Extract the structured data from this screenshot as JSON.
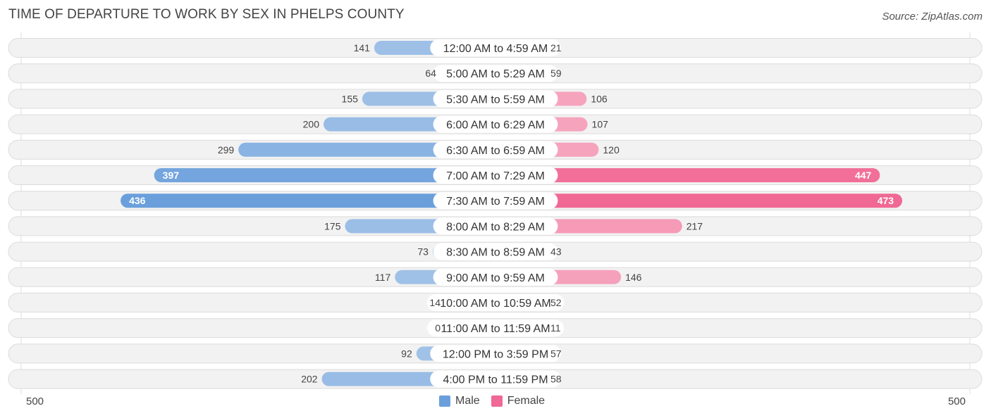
{
  "title": "TIME OF DEPARTURE TO WORK BY SEX IN PHELPS COUNTY",
  "source": "Source: ZipAtlas.com",
  "colors": {
    "male_light": "#a4c4e8",
    "male_strong": "#6a9fdc",
    "female_light": "#f6a7c0",
    "female_strong": "#f06894",
    "row_bg": "#f2f2f2",
    "row_border": "#dcdcdc"
  },
  "legend": {
    "male": "Male",
    "female": "Female"
  },
  "axis": {
    "left_label": "500",
    "right_label": "500"
  },
  "chart_data": {
    "type": "bar",
    "orientation": "horizontal-diverging",
    "title": "TIME OF DEPARTURE TO WORK BY SEX IN PHELPS COUNTY",
    "xlim": [
      -500,
      500
    ],
    "categories": [
      "12:00 AM to 4:59 AM",
      "5:00 AM to 5:29 AM",
      "5:30 AM to 5:59 AM",
      "6:00 AM to 6:29 AM",
      "6:30 AM to 6:59 AM",
      "7:00 AM to 7:29 AM",
      "7:30 AM to 7:59 AM",
      "8:00 AM to 8:29 AM",
      "8:30 AM to 8:59 AM",
      "9:00 AM to 9:59 AM",
      "10:00 AM to 10:59 AM",
      "11:00 AM to 11:59 AM",
      "12:00 PM to 3:59 PM",
      "4:00 PM to 11:59 PM"
    ],
    "series": [
      {
        "name": "Male",
        "values": [
          141,
          64,
          155,
          200,
          299,
          397,
          436,
          175,
          73,
          117,
          14,
          0,
          92,
          202
        ]
      },
      {
        "name": "Female",
        "values": [
          21,
          59,
          106,
          107,
          120,
          447,
          473,
          217,
          43,
          146,
          52,
          11,
          57,
          58
        ]
      }
    ]
  }
}
